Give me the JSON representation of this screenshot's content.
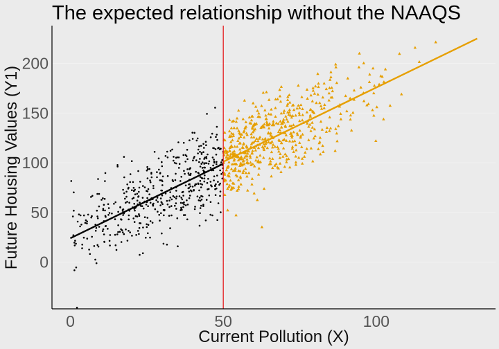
{
  "chart_data": {
    "type": "scatter",
    "title": "The expected relationship without the NAAQS",
    "xlabel": "Current Pollution (X)",
    "ylabel": "Future Housing Values (Y1)",
    "xlim": [
      -6,
      139
    ],
    "ylim": [
      -47,
      238
    ],
    "x_ticks": [
      0,
      50,
      100
    ],
    "y_ticks": [
      0,
      50,
      100,
      150,
      200
    ],
    "grid": true,
    "cutoff": {
      "x": 50,
      "color": "#e41a1c"
    },
    "colors": {
      "below": "#000000",
      "above": "#e69f00",
      "background": "#ebebeb",
      "grid": "#f2f2f2"
    },
    "series": [
      {
        "marker": "dot",
        "color": "#000000",
        "x_range": [
          0,
          50
        ],
        "n_points": 500,
        "fit_line": {
          "x": [
            0,
            50
          ],
          "y": [
            24,
            99
          ]
        }
      },
      {
        "marker": "triangle",
        "color": "#e69f00",
        "x_range": [
          50,
          134
        ],
        "n_points": 550,
        "fit_line": {
          "x": [
            50,
            133
          ],
          "y": [
            101,
            225
          ]
        }
      }
    ]
  }
}
